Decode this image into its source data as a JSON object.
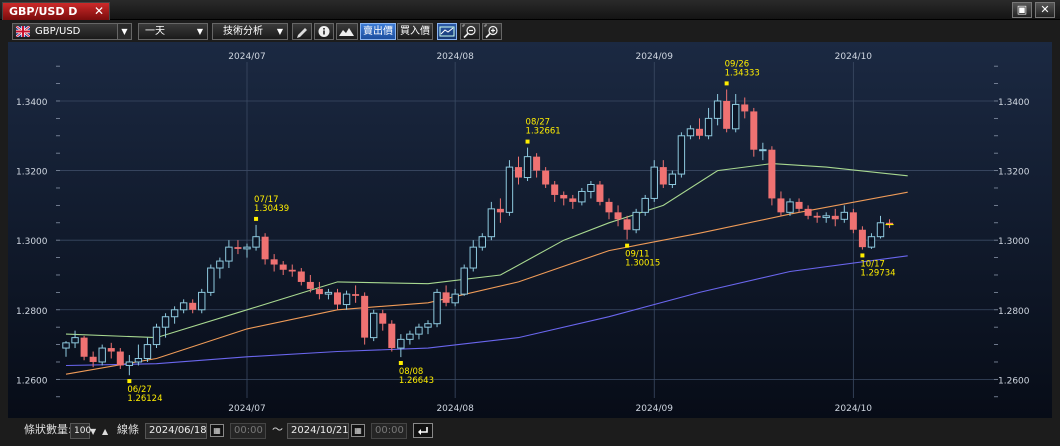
{
  "window": {
    "tab_title": "GBP/USD D",
    "close_glyph": "✕",
    "restore_glyph": "▣",
    "exit_glyph": "✕"
  },
  "toolbar": {
    "symbol": "GBP/USD",
    "period": "一天",
    "analysis": "技術分析",
    "bid_label": "賣出價",
    "ask_label": "買入價",
    "active_price": "bid",
    "icons": [
      "uk-flag-icon",
      "pencil-icon",
      "info-icon",
      "mountain-chart-icon",
      "price-line-icon",
      "zoom-out-icon",
      "zoom-in-icon"
    ]
  },
  "bottom": {
    "bars_label": "條狀數量:",
    "bars_value": "100",
    "line_label": "線條",
    "from_date": "2024/06/18",
    "from_time": "00:00",
    "tilde": "～",
    "to_date": "2024/10/21",
    "to_time": "00:00"
  },
  "chart_data": {
    "type": "candlestick",
    "x_tick_labels": [
      "2024/07",
      "2024/08",
      "2024/09",
      "2024/10"
    ],
    "x_tick_indices": [
      20,
      43,
      65,
      87
    ],
    "y_ticks": [
      "1.2600",
      "1.2800",
      "1.3000",
      "1.3200",
      "1.3400"
    ],
    "ylim": [
      1.2535,
      1.3535
    ],
    "colors": {
      "up": "#8ec9de",
      "down": "#ef7272",
      "ma_short": "#a8d890",
      "ma_mid": "#ef9b58",
      "ma_long": "#6a66ee",
      "marker": "#ffee00",
      "bg_top": "#1b2942",
      "bg_bottom": "#070c17"
    },
    "candles": [
      [
        1.269,
        1.271,
        1.2665,
        1.2705
      ],
      [
        1.2705,
        1.274,
        1.269,
        1.272
      ],
      [
        1.272,
        1.2725,
        1.2655,
        1.2665
      ],
      [
        1.2665,
        1.268,
        1.2635,
        1.265
      ],
      [
        1.265,
        1.27,
        1.264,
        1.269
      ],
      [
        1.269,
        1.2705,
        1.266,
        1.268
      ],
      [
        1.268,
        1.269,
        1.263,
        1.264
      ],
      [
        1.264,
        1.267,
        1.2612,
        1.265
      ],
      [
        1.265,
        1.27,
        1.264,
        1.266
      ],
      [
        1.266,
        1.272,
        1.265,
        1.27
      ],
      [
        1.27,
        1.276,
        1.269,
        1.275
      ],
      [
        1.275,
        1.279,
        1.272,
        1.278
      ],
      [
        1.278,
        1.281,
        1.276,
        1.28
      ],
      [
        1.28,
        1.283,
        1.279,
        1.282
      ],
      [
        1.282,
        1.283,
        1.279,
        1.28
      ],
      [
        1.28,
        1.286,
        1.279,
        1.285
      ],
      [
        1.285,
        1.293,
        1.284,
        1.292
      ],
      [
        1.292,
        1.295,
        1.289,
        1.294
      ],
      [
        1.294,
        1.3,
        1.292,
        1.298
      ],
      [
        1.298,
        1.3,
        1.296,
        1.2975
      ],
      [
        1.2975,
        1.299,
        1.295,
        1.298
      ],
      [
        1.298,
        1.3044,
        1.297,
        1.301
      ],
      [
        1.301,
        1.302,
        1.293,
        1.2945
      ],
      [
        1.2945,
        1.296,
        1.291,
        1.293
      ],
      [
        1.293,
        1.294,
        1.29,
        1.2915
      ],
      [
        1.2915,
        1.293,
        1.2895,
        1.291
      ],
      [
        1.291,
        1.292,
        1.287,
        1.288
      ],
      [
        1.288,
        1.29,
        1.285,
        1.286
      ],
      [
        1.286,
        1.288,
        1.283,
        1.2845
      ],
      [
        1.2845,
        1.286,
        1.283,
        1.285
      ],
      [
        1.285,
        1.286,
        1.28,
        1.2815
      ],
      [
        1.2815,
        1.2855,
        1.28,
        1.2845
      ],
      [
        1.2845,
        1.287,
        1.282,
        1.284
      ],
      [
        1.284,
        1.285,
        1.27,
        1.272
      ],
      [
        1.272,
        1.28,
        1.271,
        1.279
      ],
      [
        1.279,
        1.28,
        1.274,
        1.276
      ],
      [
        1.276,
        1.277,
        1.268,
        1.269
      ],
      [
        1.269,
        1.273,
        1.2664,
        1.2715
      ],
      [
        1.2715,
        1.274,
        1.27,
        1.273
      ],
      [
        1.273,
        1.276,
        1.2715,
        1.275
      ],
      [
        1.275,
        1.277,
        1.273,
        1.276
      ],
      [
        1.276,
        1.286,
        1.275,
        1.285
      ],
      [
        1.285,
        1.287,
        1.281,
        1.282
      ],
      [
        1.282,
        1.286,
        1.281,
        1.2845
      ],
      [
        1.2845,
        1.293,
        1.284,
        1.292
      ],
      [
        1.292,
        1.3,
        1.291,
        1.298
      ],
      [
        1.298,
        1.302,
        1.297,
        1.301
      ],
      [
        1.301,
        1.311,
        1.3,
        1.309
      ],
      [
        1.309,
        1.312,
        1.305,
        1.308
      ],
      [
        1.308,
        1.323,
        1.307,
        1.321
      ],
      [
        1.321,
        1.324,
        1.316,
        1.318
      ],
      [
        1.318,
        1.3266,
        1.317,
        1.324
      ],
      [
        1.324,
        1.325,
        1.318,
        1.32
      ],
      [
        1.32,
        1.321,
        1.315,
        1.316
      ],
      [
        1.316,
        1.317,
        1.311,
        1.313
      ],
      [
        1.313,
        1.314,
        1.31,
        1.312
      ],
      [
        1.312,
        1.313,
        1.309,
        1.311
      ],
      [
        1.311,
        1.315,
        1.31,
        1.314
      ],
      [
        1.314,
        1.317,
        1.312,
        1.316
      ],
      [
        1.316,
        1.317,
        1.31,
        1.311
      ],
      [
        1.311,
        1.312,
        1.306,
        1.308
      ],
      [
        1.308,
        1.31,
        1.304,
        1.306
      ],
      [
        1.306,
        1.307,
        1.3002,
        1.303
      ],
      [
        1.303,
        1.309,
        1.302,
        1.308
      ],
      [
        1.308,
        1.313,
        1.307,
        1.312
      ],
      [
        1.312,
        1.323,
        1.311,
        1.321
      ],
      [
        1.321,
        1.323,
        1.315,
        1.316
      ],
      [
        1.316,
        1.32,
        1.315,
        1.319
      ],
      [
        1.319,
        1.331,
        1.318,
        1.33
      ],
      [
        1.33,
        1.333,
        1.329,
        1.332
      ],
      [
        1.332,
        1.335,
        1.329,
        1.33
      ],
      [
        1.33,
        1.338,
        1.329,
        1.335
      ],
      [
        1.335,
        1.342,
        1.333,
        1.34
      ],
      [
        1.34,
        1.3433,
        1.331,
        1.332
      ],
      [
        1.332,
        1.342,
        1.331,
        1.339
      ],
      [
        1.339,
        1.341,
        1.335,
        1.337
      ],
      [
        1.337,
        1.338,
        1.324,
        1.326
      ],
      [
        1.326,
        1.328,
        1.323,
        1.326
      ],
      [
        1.326,
        1.327,
        1.31,
        1.312
      ],
      [
        1.312,
        1.314,
        1.307,
        1.308
      ],
      [
        1.308,
        1.312,
        1.307,
        1.311
      ],
      [
        1.311,
        1.312,
        1.308,
        1.309
      ],
      [
        1.309,
        1.31,
        1.306,
        1.307
      ],
      [
        1.307,
        1.308,
        1.305,
        1.3065
      ],
      [
        1.3065,
        1.308,
        1.305,
        1.307
      ],
      [
        1.307,
        1.309,
        1.304,
        1.306
      ],
      [
        1.306,
        1.31,
        1.305,
        1.308
      ],
      [
        1.308,
        1.309,
        1.302,
        1.303
      ],
      [
        1.303,
        1.304,
        1.2973,
        1.298
      ],
      [
        1.298,
        1.302,
        1.2975,
        1.301
      ],
      [
        1.301,
        1.307,
        1.3005,
        1.305
      ],
      [
        1.305,
        1.306,
        1.3035,
        1.3045
      ]
    ],
    "ma_short": [
      [
        0,
        1.273
      ],
      [
        10,
        1.272
      ],
      [
        20,
        1.28
      ],
      [
        30,
        1.288
      ],
      [
        40,
        1.2875
      ],
      [
        48,
        1.29
      ],
      [
        55,
        1.3
      ],
      [
        60,
        1.305
      ],
      [
        66,
        1.31
      ],
      [
        72,
        1.32
      ],
      [
        78,
        1.322
      ],
      [
        84,
        1.321
      ],
      [
        93,
        1.3185
      ]
    ],
    "ma_mid": [
      [
        0,
        1.2615
      ],
      [
        10,
        1.266
      ],
      [
        20,
        1.2745
      ],
      [
        30,
        1.28
      ],
      [
        40,
        1.282
      ],
      [
        50,
        1.288
      ],
      [
        60,
        1.297
      ],
      [
        70,
        1.302
      ],
      [
        80,
        1.3075
      ],
      [
        93,
        1.3138
      ]
    ],
    "ma_long": [
      [
        0,
        1.264
      ],
      [
        10,
        1.2645
      ],
      [
        20,
        1.2665
      ],
      [
        30,
        1.268
      ],
      [
        40,
        1.269
      ],
      [
        50,
        1.272
      ],
      [
        60,
        1.278
      ],
      [
        70,
        1.285
      ],
      [
        80,
        1.291
      ],
      [
        93,
        1.2955
      ]
    ],
    "annotations": [
      {
        "index": 7,
        "price": 1.26124,
        "date": "06/27",
        "value": "1.26124",
        "position": "below"
      },
      {
        "index": 21,
        "price": 1.30439,
        "date": "07/17",
        "value": "1.30439",
        "position": "above"
      },
      {
        "index": 37,
        "price": 1.26643,
        "date": "08/08",
        "value": "1.26643",
        "position": "below"
      },
      {
        "index": 51,
        "price": 1.32661,
        "date": "08/27",
        "value": "1.32661",
        "position": "above"
      },
      {
        "index": 62,
        "price": 1.30015,
        "date": "09/11",
        "value": "1.30015",
        "position": "below"
      },
      {
        "index": 73,
        "price": 1.34333,
        "date": "09/26",
        "value": "1.34333",
        "position": "above"
      },
      {
        "index": 88,
        "price": 1.29734,
        "date": "10/17",
        "value": "1.29734",
        "position": "below"
      }
    ]
  }
}
